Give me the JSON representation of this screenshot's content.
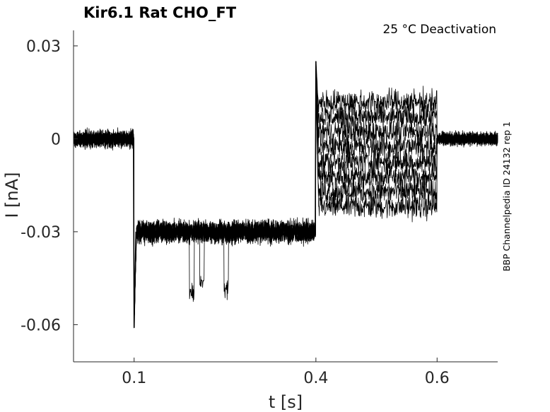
{
  "chart_data": {
    "type": "line",
    "title": "Kir6.1  Rat  CHO_FT",
    "annotation": "25 °C  Deactivation",
    "side_label": "BBP Channelpedia ID 24132 rep 1",
    "xlabel": "t [s]",
    "ylabel": "I [nA]",
    "xlim": [
      0,
      0.7
    ],
    "ylim": [
      -0.072,
      0.035
    ],
    "xticks": [
      0.1,
      0.4,
      0.6
    ],
    "xtick_labels": [
      "0.1",
      "0.4",
      "0.6"
    ],
    "yticks": [
      0.03,
      0,
      -0.03,
      -0.06
    ],
    "ytick_labels": [
      "0.03",
      "0",
      "-0.03",
      "-0.06"
    ],
    "grid": false,
    "line_color": "#000000",
    "sweeps": 8,
    "segments": [
      {
        "t_start": 0.0,
        "t_end": 0.1,
        "mean_nA": 0.0,
        "noise_nA": 0.004
      },
      {
        "t_start": 0.1,
        "t_end": 0.4,
        "mean_nA": -0.03,
        "noise_nA": 0.005
      },
      {
        "t_start": 0.4,
        "t_end": 0.6,
        "mean_nA": -0.005,
        "noise_nA": 0.006
      },
      {
        "t_start": 0.6,
        "t_end": 0.7,
        "mean_nA": 0.0,
        "noise_nA": 0.003
      }
    ],
    "transients": [
      {
        "t": 0.1,
        "peak_nA": -0.061
      },
      {
        "t": 0.4,
        "peak_nA": 0.025
      }
    ],
    "dips": [
      {
        "t": 0.195,
        "peak_nA": -0.05
      },
      {
        "t": 0.252,
        "peak_nA": -0.049
      },
      {
        "t": 0.212,
        "peak_nA": -0.046
      }
    ]
  }
}
